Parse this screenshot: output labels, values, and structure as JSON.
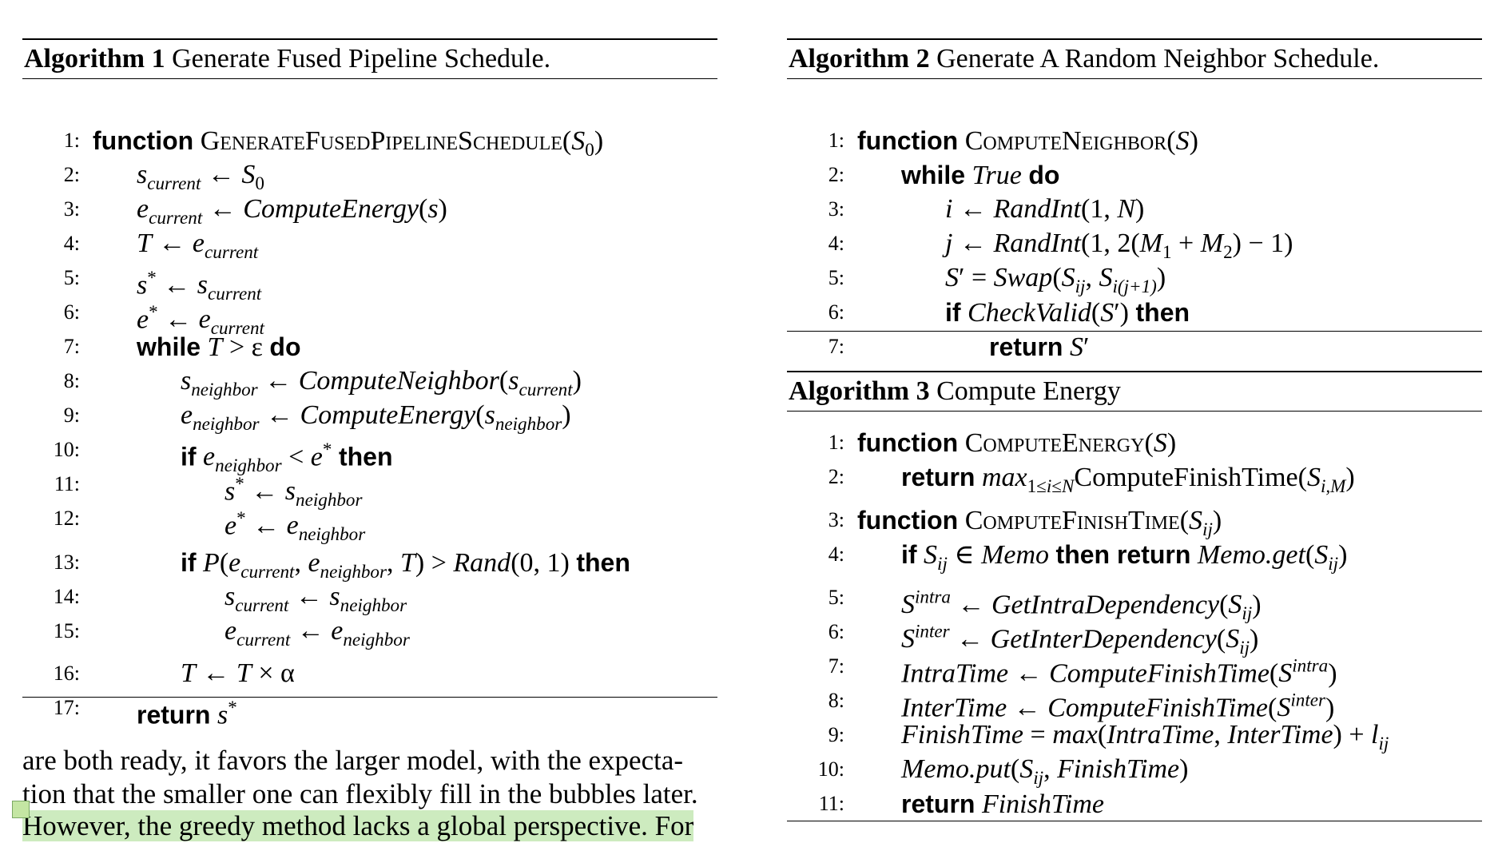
{
  "algorithms": {
    "a1": {
      "title_label": "Algorithm 1",
      "title": "Generate Fused Pipeline Schedule.",
      "lines": [
        {
          "num": "1:",
          "html": "<span class='kw'>function</span> <span class='sc'>GenerateFusedPipelineSchedule</span>(<span class='i'>S</span><sub>0</sub>)"
        },
        {
          "num": "2:",
          "html": "<span class='i'>s<sub>current</sub></span> ← <span class='i'>S</span><sub>0</sub>"
        },
        {
          "num": "3:",
          "html": "<span class='i'>e<sub>current</sub></span> ← <span class='i'>ComputeEnergy</span>(<span class='i'>s</span>)"
        },
        {
          "num": "4:",
          "html": "<span class='i'>T</span> ← <span class='i'>e<sub>current</sub></span>"
        },
        {
          "num": "5:",
          "html": "<span class='i'>s</span><sup>*</sup> ← <span class='i'>s<sub>current</sub></span>"
        },
        {
          "num": "6:",
          "html": "<span class='i'>e</span><sup>*</sup> ← <span class='i'>e<sub>current</sub></span>"
        },
        {
          "num": "7:",
          "html": "<span class='kw'>while</span> <span class='i'>T</span> &gt; ε <span class='kw'>do</span>"
        },
        {
          "num": "8:",
          "html": "<span class='i'>s<sub>neighbor</sub></span> ← <span class='i'>ComputeNeighbor</span>(<span class='i'>s<sub>current</sub></span>)"
        },
        {
          "num": "9:",
          "html": "<span class='i'>e<sub>neighbor</sub></span> ← <span class='i'>ComputeEnergy</span>(<span class='i'>s<sub>neighbor</sub></span>)"
        },
        {
          "num": "10:",
          "html": "<span class='kw'>if</span> <span class='i'>e<sub>neighbor</sub></span> &lt; <span class='i'>e</span><sup>*</sup> <span class='kw'>then</span>"
        },
        {
          "num": "11:",
          "html": "<span class='i'>s</span><sup>*</sup> ← <span class='i'>s<sub>neighbor</sub></span>"
        },
        {
          "num": "12:",
          "html": "<span class='i'>e</span><sup>*</sup> ← <span class='i'>e<sub>neighbor</sub></span>"
        },
        {
          "num": "13:",
          "html": "<span class='kw'>if</span> <span class='i'>P</span>(<span class='i'>e<sub>current</sub></span>, <span class='i'>e<sub>neighbor</sub></span>, <span class='i'>T</span>) &gt; <span class='i'>Rand</span>(0, 1) <span class='kw'>then</span>"
        },
        {
          "num": "14:",
          "html": "<span class='i'>s<sub>current</sub></span> ← <span class='i'>s<sub>neighbor</sub></span>"
        },
        {
          "num": "15:",
          "html": "<span class='i'>e<sub>current</sub></span> ← <span class='i'>e<sub>neighbor</sub></span>"
        },
        {
          "num": "16:",
          "html": "<span class='i'>T</span> ← <span class='i'>T</span> × α"
        },
        {
          "num": "17:",
          "html": "<span class='kw'>return</span> <span class='i'>s</span><sup>*</sup>"
        }
      ]
    },
    "a2": {
      "title_label": "Algorithm 2",
      "title": "Generate A Random Neighbor Schedule.",
      "lines": [
        {
          "num": "1:",
          "html": "<span class='kw'>function</span> <span class='sc'>ComputeNeighbor</span>(<span class='i'>S</span>)"
        },
        {
          "num": "2:",
          "html": "<span class='kw'>while</span> <span class='i'>True</span> <span class='kw'>do</span>"
        },
        {
          "num": "3:",
          "html": "<span class='i'>i</span> ← <span class='i'>RandInt</span>(1, <span class='i'>N</span>)"
        },
        {
          "num": "4:",
          "html": "<span class='i'>j</span> ← <span class='i'>RandInt</span>(1, 2(<span class='i'>M</span><sub>1</sub> + <span class='i'>M</span><sub>2</sub>) − 1)"
        },
        {
          "num": "5:",
          "html": "<span class='i'>S</span>′ = <span class='i'>Swap</span>(<span class='i'>S<sub>ij</sub></span>, <span class='i'>S<sub>i(j+1)</sub></span>)"
        },
        {
          "num": "6:",
          "html": "<span class='kw'>if</span> <span class='i'>CheckValid</span>(<span class='i'>S</span>′) <span class='kw'>then</span>"
        },
        {
          "num": "7:",
          "html": "<span class='kw'>return</span> <span class='i'>S</span>′"
        }
      ]
    },
    "a3": {
      "title_label": "Algorithm 3",
      "title": "Compute Energy",
      "lines": [
        {
          "num": "1:",
          "html": "<span class='kw'>function</span> <span class='sc'>ComputeEnergy</span>(<span class='i'>S</span>)"
        },
        {
          "num": "2:",
          "html": "<span class='kw'>return</span> <span class='i'>max</span><sub>1≤<span class='i'>i</span>≤<span class='i'>N</span></sub>ComputeFinishTime(<span class='i'>S<sub>i,M</sub></span>)"
        },
        {
          "num": "3:",
          "html": "<span class='kw'>function</span> <span class='sc'>ComputeFinishTime</span>(<span class='i'>S<sub>ij</sub></span>)"
        },
        {
          "num": "4:",
          "html": "<span class='kw'>if</span> <span class='i'>S<sub>ij</sub></span> ∈ <span class='i'>Memo</span> <span class='kw'>then return</span> <span class='i'>Memo.get</span>(<span class='i'>S<sub>ij</sub></span>)"
        },
        {
          "num": "5:",
          "html": "<span class='i'>S<sup>intra</sup></span> ← <span class='i'>GetIntraDependency</span>(<span class='i'>S<sub>ij</sub></span>)"
        },
        {
          "num": "6:",
          "html": "<span class='i'>S<sup>inter</sup></span> ← <span class='i'>GetInterDependency</span>(<span class='i'>S<sub>ij</sub></span>)"
        },
        {
          "num": "7:",
          "html": "<span class='i'>IntraTime</span> ← <span class='i'>ComputeFinishTime</span>(<span class='i'>S<sup>intra</sup></span>)"
        },
        {
          "num": "8:",
          "html": "<span class='i'>InterTime</span> ← <span class='i'>ComputeFinishTime</span>(<span class='i'>S<sup>inter</sup></span>)"
        },
        {
          "num": "9:",
          "html": "<span class='i'>FinishTime</span> = <span class='i'>max</span>(<span class='i'>IntraTime</span>, <span class='i'>InterTime</span>) + <span class='i'>l<sub>ij</sub></span>"
        },
        {
          "num": "10:",
          "html": "<span class='i'>Memo.put</span>(<span class='i'>S<sub>ij</sub></span>, <span class='i'>FinishTime</span>)"
        },
        {
          "num": "11:",
          "html": "<span class='kw'>return</span> <span class='i'>FinishTime</span>"
        }
      ]
    }
  },
  "paragraph": {
    "line1": "are both ready, it favors the larger model, with the expecta-",
    "line2": "tion that the smaller one can flexibly fill in the bubbles later.",
    "line3": "However, the greedy method lacks a global perspective. For"
  }
}
